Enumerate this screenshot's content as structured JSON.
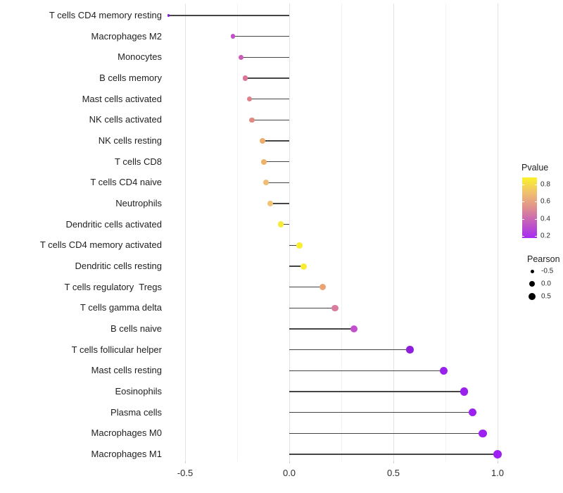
{
  "chart_data": {
    "type": "lollipop",
    "title": "",
    "xlabel": "",
    "ylabel": "",
    "x_tick_labels": [
      "-0.5",
      "0.0",
      "0.5",
      "1.0"
    ],
    "x_ticks_major": [
      -0.5,
      0.0,
      0.5,
      1.0
    ],
    "x_ticks_minor": [
      -0.25,
      0.25,
      0.75
    ],
    "xlim": [
      -0.59,
      1.08
    ],
    "grid": "on",
    "legend_position": "right",
    "size_encoding": "Pearson",
    "color_encoding": "Pvalue",
    "points": [
      {
        "label": "T cells CD4 memory resting",
        "pearson": -0.58,
        "color": "#8a17db",
        "radius": 1.8
      },
      {
        "label": "Macrophages M2",
        "pearson": -0.27,
        "color": "#c250c6",
        "radius": 3.4
      },
      {
        "label": "Monocytes",
        "pearson": -0.23,
        "color": "#cb5bb4",
        "radius": 3.5
      },
      {
        "label": "B cells memory",
        "pearson": -0.21,
        "color": "#db7596",
        "radius": 3.6
      },
      {
        "label": "Mast cells activated",
        "pearson": -0.19,
        "color": "#df818a",
        "radius": 3.7
      },
      {
        "label": "NK cells activated",
        "pearson": -0.18,
        "color": "#e18a82",
        "radius": 3.8
      },
      {
        "label": "NK cells resting",
        "pearson": -0.13,
        "color": "#eeac6c",
        "radius": 4.0
      },
      {
        "label": "T cells CD8",
        "pearson": -0.12,
        "color": "#efb168",
        "radius": 4.0
      },
      {
        "label": "T cells CD4 naive",
        "pearson": -0.11,
        "color": "#f0bd72",
        "radius": 4.0
      },
      {
        "label": "Neutrophils",
        "pearson": -0.09,
        "color": "#f0c375",
        "radius": 4.1
      },
      {
        "label": "Dendritic cells activated",
        "pearson": -0.04,
        "color": "#f7eb38",
        "radius": 4.3
      },
      {
        "label": "T cells CD4 memory activated",
        "pearson": 0.05,
        "color": "#f9ee32",
        "radius": 4.4
      },
      {
        "label": "Dendritic cells resting",
        "pearson": 0.07,
        "color": "#f8ed35",
        "radius": 4.5
      },
      {
        "label": "T cells regulatory  Tregs",
        "pearson": 0.16,
        "color": "#e9a476",
        "radius": 4.7
      },
      {
        "label": "T cells gamma delta",
        "pearson": 0.22,
        "color": "#da7b9e",
        "radius": 4.8
      },
      {
        "label": "B cells naive",
        "pearson": 0.31,
        "color": "#c24fcb",
        "radius": 5.0
      },
      {
        "label": "T cells follicular helper",
        "pearson": 0.58,
        "color": "#8e1edc",
        "radius": 5.3
      },
      {
        "label": "Mast cells resting",
        "pearson": 0.74,
        "color": "#9821eb",
        "radius": 5.5
      },
      {
        "label": "Eosinophils",
        "pearson": 0.84,
        "color": "#9a20ee",
        "radius": 5.6
      },
      {
        "label": "Plasma cells",
        "pearson": 0.88,
        "color": "#9c20f0",
        "radius": 5.7
      },
      {
        "label": "Macrophages M0",
        "pearson": 0.93,
        "color": "#9d20f2",
        "radius": 5.8
      },
      {
        "label": "Macrophages M1",
        "pearson": 1.0,
        "color": "#9e1ff4",
        "radius": 6.0
      }
    ]
  },
  "legends": {
    "pvalue": {
      "title": "Pvalue",
      "tick_labels": [
        "0.8",
        "0.6",
        "0.4",
        "0.2"
      ],
      "tick_values": [
        0.8,
        0.6,
        0.4,
        0.2
      ],
      "gradient_top_to_bottom": [
        "#fbf22a",
        "#efc06e",
        "#e0908e",
        "#c35bc0",
        "#a62bf2"
      ]
    },
    "pearson": {
      "title": "Pearson",
      "items": [
        {
          "label": "-0.5",
          "radius": 2.5
        },
        {
          "label": "0.0",
          "radius": 4.3
        },
        {
          "label": "0.5",
          "radius": 5.2
        }
      ]
    }
  },
  "colors": {
    "stem": "#454545",
    "grid_major": "#e3e3e3",
    "grid_minor": "#f2f2f2",
    "text": "#1f1f1f",
    "background": "#ffffff"
  }
}
